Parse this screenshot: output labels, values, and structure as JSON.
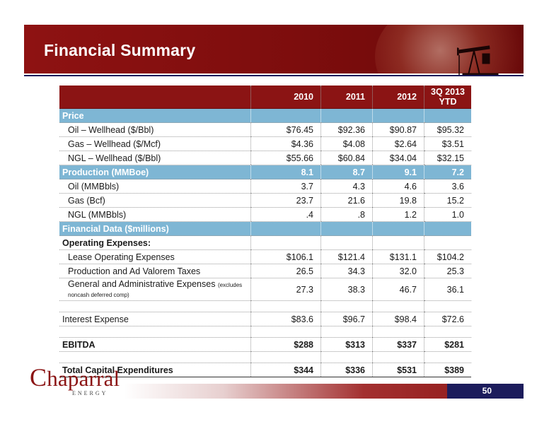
{
  "slide": {
    "title": "Financial Summary",
    "page_number": "50"
  },
  "logo": {
    "name_c": "C",
    "name_rest": "haparral",
    "sub": "ENERGY"
  },
  "table": {
    "columns": [
      "2010",
      "2011",
      "2012",
      "3Q 2013 YTD"
    ],
    "rows": [
      {
        "label": "Price",
        "values": [
          "",
          "",
          "",
          ""
        ]
      },
      {
        "label": "Oil – Wellhead ($/Bbl)",
        "values": [
          "$76.45",
          "$92.36",
          "$90.87",
          "$95.32"
        ]
      },
      {
        "label": "Gas – Wellhead ($/Mcf)",
        "values": [
          "$4.36",
          "$4.08",
          "$2.64",
          "$3.51"
        ]
      },
      {
        "label": "NGL – Wellhead ($/Bbl)",
        "values": [
          "$55.66",
          "$60.84",
          "$34.04",
          "$32.15"
        ]
      },
      {
        "label": "Production (MMBoe)",
        "values": [
          "8.1",
          "8.7",
          "9.1",
          "7.2"
        ]
      },
      {
        "label": "Oil (MMBbls)",
        "values": [
          "3.7",
          "4.3",
          "4.6",
          "3.6"
        ]
      },
      {
        "label": "Gas (Bcf)",
        "values": [
          "23.7",
          "21.6",
          "19.8",
          "15.2"
        ]
      },
      {
        "label": "NGL (MMBbls)",
        "values": [
          ".4",
          ".8",
          "1.2",
          "1.0"
        ]
      },
      {
        "label": "Financial Data ($millions)",
        "values": [
          "",
          "",
          "",
          ""
        ]
      },
      {
        "label": "Operating Expenses:",
        "values": [
          "",
          "",
          "",
          ""
        ]
      },
      {
        "label": "Lease Operating Expenses",
        "values": [
          "$106.1",
          "$121.4",
          "$131.1",
          "$104.2"
        ]
      },
      {
        "label": "Production and Ad Valorem Taxes",
        "values": [
          "26.5",
          "34.3",
          "32.0",
          "25.3"
        ]
      },
      {
        "label": "General and Administrative Expenses",
        "note": "(excludes noncash deferred comp)",
        "values": [
          "27.3",
          "38.3",
          "46.7",
          "36.1"
        ]
      },
      {
        "label": "",
        "values": [
          "",
          "",
          "",
          ""
        ]
      },
      {
        "label": "Interest  Expense",
        "values": [
          "$83.6",
          "$96.7",
          "$98.4",
          "$72.6"
        ]
      },
      {
        "label": "",
        "values": [
          "",
          "",
          "",
          ""
        ]
      },
      {
        "label": "EBITDA",
        "values": [
          "$288",
          "$313",
          "$337",
          "$281"
        ]
      },
      {
        "label": "",
        "values": [
          "",
          "",
          "",
          ""
        ]
      },
      {
        "label": "Total Capital Expenditures",
        "values": [
          "$344",
          "$336",
          "$531",
          "$389"
        ]
      }
    ]
  },
  "colors": {
    "header_red": "#8b1414",
    "section_blue": "#7eb6d4",
    "navy": "#1c1c5c"
  }
}
